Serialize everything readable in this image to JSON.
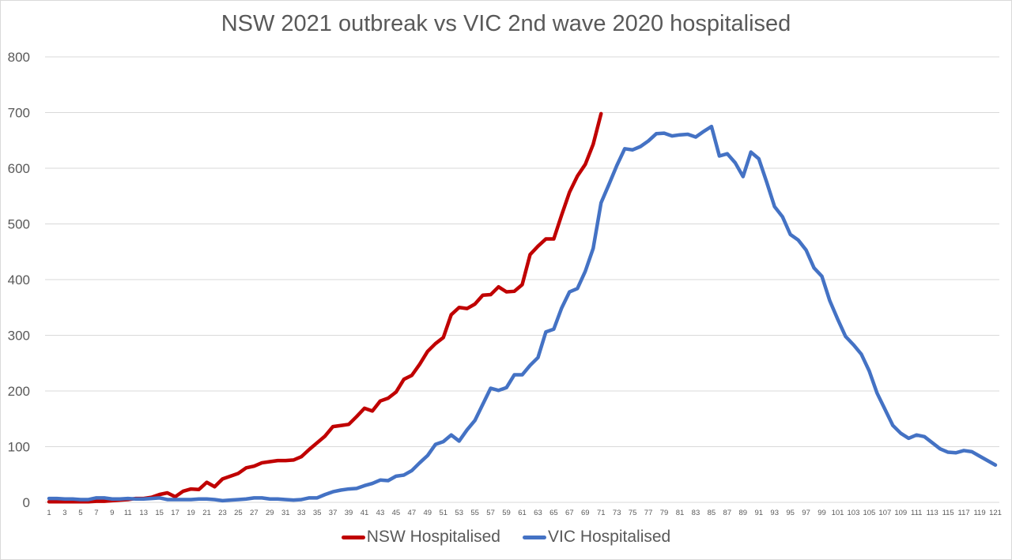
{
  "chart_data": {
    "type": "line",
    "title": "NSW 2021 outbreak vs VIC 2nd wave 2020 hospitalised",
    "xlabel": "",
    "ylabel": "",
    "ylim": [
      0,
      800
    ],
    "xlim": [
      1,
      121
    ],
    "yticks": [
      "0",
      "100",
      "200",
      "300",
      "400",
      "500",
      "600",
      "700",
      "800"
    ],
    "grid": true,
    "legend_position": "bottom",
    "series": [
      {
        "name": "NSW Hospitalised",
        "color": "#c00000",
        "values": [
          1,
          1,
          1,
          1,
          1,
          1,
          2,
          2,
          3,
          4,
          5,
          7,
          7,
          9,
          14,
          17,
          10,
          20,
          24,
          23,
          36,
          28,
          42,
          47,
          52,
          62,
          65,
          71,
          73,
          75,
          75,
          76,
          82,
          95,
          107,
          119,
          136,
          138,
          140,
          154,
          169,
          164,
          182,
          187,
          198,
          221,
          228,
          248,
          271,
          285,
          296,
          337,
          350,
          348,
          356,
          372,
          373,
          387,
          378,
          379,
          391,
          445,
          460,
          473,
          473,
          516,
          557,
          586,
          607,
          643,
          698
        ]
      },
      {
        "name": "VIC Hospitalised",
        "color": "#4472c4",
        "values": [
          7,
          7,
          6,
          6,
          5,
          5,
          8,
          8,
          6,
          6,
          7,
          6,
          6,
          7,
          8,
          5,
          5,
          5,
          5,
          6,
          6,
          5,
          3,
          4,
          5,
          6,
          8,
          8,
          6,
          6,
          5,
          4,
          5,
          8,
          8,
          14,
          19,
          22,
          24,
          25,
          30,
          34,
          40,
          39,
          47,
          49,
          57,
          71,
          84,
          104,
          109,
          121,
          110,
          130,
          147,
          176,
          205,
          201,
          206,
          229,
          229,
          246,
          260,
          306,
          311,
          349,
          378,
          384,
          415,
          456,
          538,
          571,
          605,
          635,
          633,
          639,
          649,
          662,
          663,
          658,
          660,
          661,
          656,
          666,
          675,
          622,
          626,
          610,
          585,
          629,
          617,
          575,
          531,
          513,
          481,
          471,
          453,
          421,
          406,
          362,
          329,
          298,
          283,
          266,
          236,
          196,
          167,
          138,
          124,
          115,
          121,
          118,
          107,
          96,
          90,
          89,
          93,
          91,
          83,
          75,
          67
        ]
      }
    ]
  }
}
